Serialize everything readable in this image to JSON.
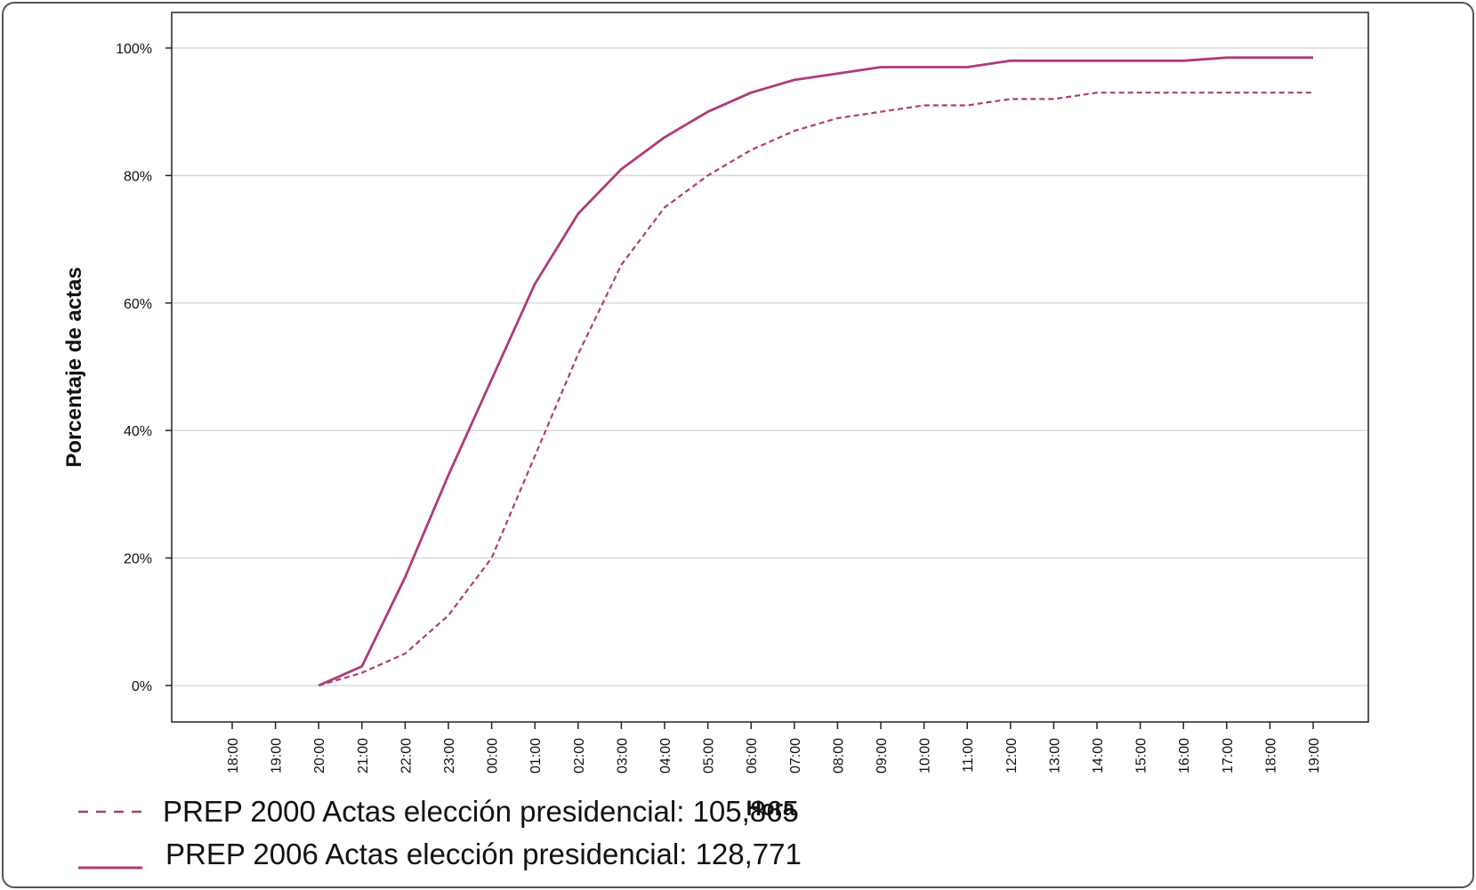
{
  "chart_data": {
    "type": "line",
    "title": "",
    "xlabel": "Hora",
    "ylabel": "Porcentaje de actas",
    "ylim": [
      0,
      100
    ],
    "yticks": [
      "0%",
      "20%",
      "40%",
      "60%",
      "80%",
      "100%"
    ],
    "yticks_values": [
      0,
      20,
      40,
      60,
      80,
      100
    ],
    "grid": "horizontal",
    "categories": [
      "18:00",
      "19:00",
      "20:00",
      "21:00",
      "22:00",
      "23:00",
      "00:00",
      "01:00",
      "02:00",
      "03:00",
      "04:00",
      "05:00",
      "06:00",
      "07:00",
      "08:00",
      "09:00",
      "10:00",
      "11:00",
      "12:00",
      "13:00",
      "14:00",
      "15:00",
      "16:00",
      "17:00",
      "18:00",
      "19:00"
    ],
    "series": [
      {
        "name": "PREP 2000 Actas elección presidencial: 105,865",
        "style": "dashed",
        "color": "#b03a78",
        "values": [
          null,
          null,
          0,
          2,
          5,
          11,
          20,
          36,
          52,
          66,
          75,
          80,
          84,
          87,
          89,
          90,
          91,
          91,
          92,
          92,
          93,
          93,
          93,
          93,
          93,
          93
        ]
      },
      {
        "name": "PREP 2006 Actas elección presidencial: 128,771",
        "style": "solid",
        "color": "#b03a78",
        "values": [
          null,
          null,
          0,
          3,
          17,
          33,
          48,
          63,
          74,
          81,
          86,
          90,
          93,
          95,
          96,
          97,
          97,
          97,
          98,
          98,
          98,
          98,
          98,
          98.5,
          98.5,
          98.5
        ]
      }
    ],
    "legend_position": "bottom-left"
  }
}
